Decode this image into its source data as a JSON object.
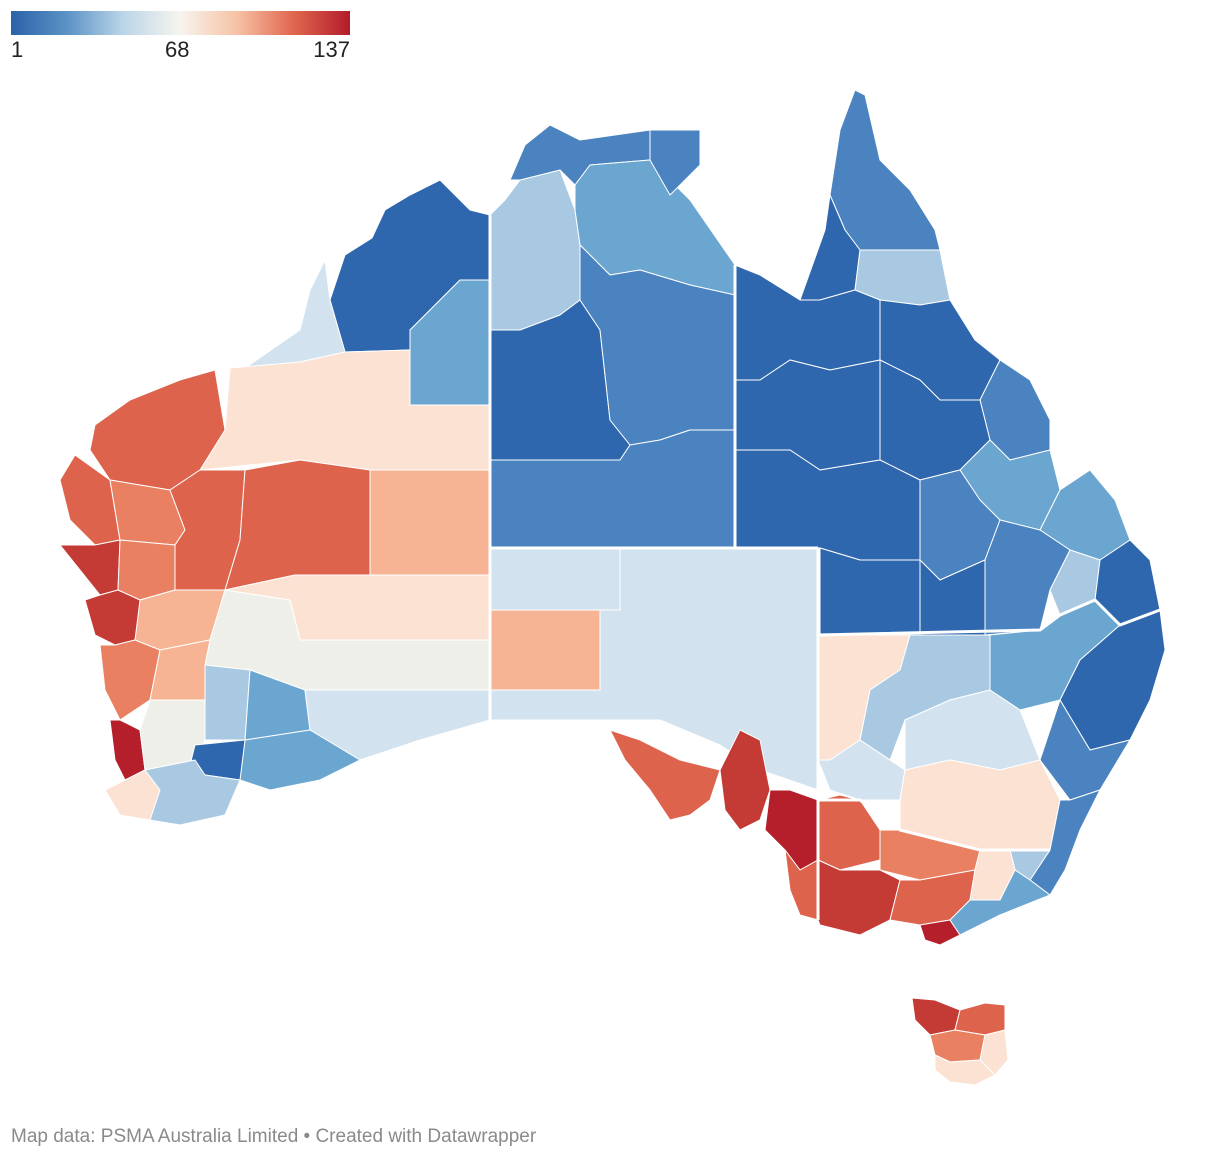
{
  "legend": {
    "min_label": "1",
    "mid_label": "68",
    "max_label": "137",
    "color_stops": [
      "#2b62a8",
      "#5c93c6",
      "#bcd6e8",
      "#f7f4ee",
      "#f6c2a5",
      "#e0664e",
      "#b31c2a"
    ]
  },
  "footer": {
    "source": "Map data: PSMA Australia Limited • Created with Datawrapper"
  },
  "palette": {
    "deep_blue": "#2e67ad",
    "blue": "#4a83bf",
    "mid_blue": "#6ba6d1",
    "light_blue": "#a9c9e2",
    "pale_blue": "#d2e3ef",
    "neutral": "#efefea",
    "peach": "#fbe2d2",
    "light_orange": "#f6b495",
    "orange": "#ea8062",
    "red_orange": "#dd634c",
    "red": "#c43b35",
    "dark_red": "#b51f2b",
    "border": "#ffffff"
  }
}
